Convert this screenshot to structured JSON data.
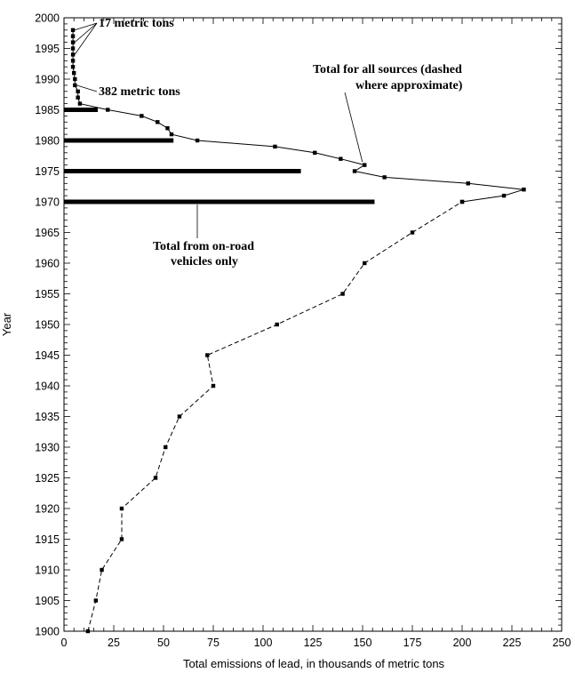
{
  "chart_data": {
    "type": "line",
    "title": "",
    "xlabel": "Total emissions of lead, in thousands of metric tons",
    "ylabel": "Year",
    "xlim": [
      0,
      250
    ],
    "ylim": [
      1900,
      2000
    ],
    "x_ticks": [
      0,
      25,
      50,
      75,
      100,
      125,
      150,
      175,
      200,
      225,
      250
    ],
    "y_ticks": [
      1900,
      1905,
      1910,
      1915,
      1920,
      1925,
      1930,
      1935,
      1940,
      1945,
      1950,
      1955,
      1960,
      1965,
      1970,
      1975,
      1980,
      1985,
      1990,
      1995,
      2000
    ],
    "grid": false,
    "series": [
      {
        "name": "Total for all sources",
        "style": "dashed-approximate",
        "points": [
          {
            "year": 1900,
            "value": 12
          },
          {
            "year": 1905,
            "value": 16
          },
          {
            "year": 1910,
            "value": 19
          },
          {
            "year": 1915,
            "value": 29
          },
          {
            "year": 1920,
            "value": 29
          },
          {
            "year": 1925,
            "value": 46
          },
          {
            "year": 1930,
            "value": 51
          },
          {
            "year": 1935,
            "value": 58
          },
          {
            "year": 1940,
            "value": 75
          },
          {
            "year": 1945,
            "value": 72
          },
          {
            "year": 1950,
            "value": 107
          },
          {
            "year": 1955,
            "value": 140
          },
          {
            "year": 1960,
            "value": 151
          },
          {
            "year": 1965,
            "value": 175
          },
          {
            "year": 1970,
            "value": 200
          }
        ]
      },
      {
        "name": "Total for all sources",
        "style": "solid",
        "points": [
          {
            "year": 1970,
            "value": 200
          },
          {
            "year": 1971,
            "value": 221
          },
          {
            "year": 1972,
            "value": 231
          },
          {
            "year": 1973,
            "value": 203
          },
          {
            "year": 1974,
            "value": 161
          },
          {
            "year": 1975,
            "value": 146
          },
          {
            "year": 1976,
            "value": 151
          },
          {
            "year": 1977,
            "value": 139
          },
          {
            "year": 1978,
            "value": 126
          },
          {
            "year": 1979,
            "value": 106
          },
          {
            "year": 1980,
            "value": 67
          },
          {
            "year": 1981,
            "value": 54
          },
          {
            "year": 1982,
            "value": 52
          },
          {
            "year": 1983,
            "value": 47
          },
          {
            "year": 1984,
            "value": 39
          },
          {
            "year": 1985,
            "value": 22
          },
          {
            "year": 1986,
            "value": 8
          },
          {
            "year": 1987,
            "value": 7
          },
          {
            "year": 1988,
            "value": 7
          },
          {
            "year": 1989,
            "value": 5.5
          },
          {
            "year": 1990,
            "value": 5.5
          },
          {
            "year": 1991,
            "value": 5
          },
          {
            "year": 1992,
            "value": 4.5
          },
          {
            "year": 1993,
            "value": 4.5
          },
          {
            "year": 1994,
            "value": 4.5
          },
          {
            "year": 1995,
            "value": 4.5
          },
          {
            "year": 1996,
            "value": 4.5
          },
          {
            "year": 1997,
            "value": 4.5
          },
          {
            "year": 1998,
            "value": 4.5
          }
        ]
      }
    ],
    "on_road_bars": {
      "name": "Total from on-road vehicles only",
      "bars": [
        {
          "year": 1970,
          "value": 156
        },
        {
          "year": 1975,
          "value": 119
        },
        {
          "year": 1980,
          "value": 55
        },
        {
          "year": 1985,
          "value": 17
        }
      ]
    },
    "annotations": [
      {
        "id": "17mt",
        "text": "17 metric tons"
      },
      {
        "id": "382mt",
        "text": "382 metric tons"
      },
      {
        "id": "total-all",
        "text_lines": [
          "Total for all sources (dashed",
          "where approximate)"
        ]
      },
      {
        "id": "on-road",
        "text_lines": [
          "Total from on-road",
          "vehicles only"
        ]
      }
    ]
  }
}
